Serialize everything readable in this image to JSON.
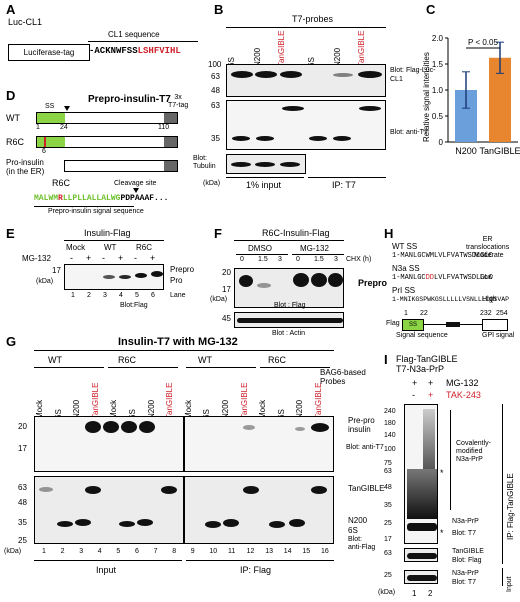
{
  "panelA": {
    "letter": "A",
    "title": "Luc-CL1",
    "cl1_header": "CL1 sequence",
    "tag_box": "Luciferase-tag",
    "sequence_black": "ACKNWFSS",
    "sequence_red": "LSHFVIHL",
    "sequence_prefix": "-"
  },
  "panelB": {
    "letter": "B",
    "probes_header": "T7-probes",
    "lanes": [
      "6S",
      "N200",
      "TanGIBLE",
      "6S",
      "N200",
      "TanGIBLE"
    ],
    "mw_top": [
      "100",
      "63",
      "48"
    ],
    "mw_mid": [
      "63",
      "35"
    ],
    "mw_unit": "(kDa)",
    "blot1": "Blot: Flag-Luc-CL1",
    "blot2": "Blot: anti-T7",
    "blot3": "Blot: Tubulin",
    "input_label": "1% input",
    "ip_label": "IP: T7"
  },
  "panelC": {
    "letter": "C",
    "ylabel": "Relative signal intensities",
    "pvalue": "P < 0.05",
    "chart_data": {
      "type": "bar",
      "categories": [
        "N200",
        "TanGIBLE"
      ],
      "values": [
        1.0,
        1.62
      ],
      "errors": [
        0.35,
        0.3
      ],
      "colors": [
        "#6b9fdc",
        "#e8852f"
      ],
      "yticks": [
        "0",
        "0.5",
        "1.0",
        "1.5",
        "2.0"
      ],
      "ylim": [
        0,
        2.0
      ]
    }
  },
  "panelD": {
    "letter": "D",
    "title": "Prepro-insulin-T7",
    "tag_label": "3x\nT7-tag",
    "rows": [
      "WT",
      "R6C",
      "Pro-insulin\n(in the ER)"
    ],
    "ss": "SS",
    "num1": "1",
    "num24": "24",
    "num110": "110",
    "num6": "6",
    "r6c": "R6C",
    "cleavage": "Cleavage site",
    "signal_seq_label": "Prepro-insulin signal sequence",
    "seq_green1": "MALWM",
    "seq_red": "R",
    "seq_green2": "LLPLLALLALWG",
    "seq_black": "PDPAAAF..."
  },
  "panelE": {
    "letter": "E",
    "title": "Insulin-Flag",
    "groups": [
      "Mock",
      "WT",
      "R6C"
    ],
    "mg132": "MG-132",
    "signs": [
      "-",
      "+",
      "-",
      "+",
      "-",
      "+"
    ],
    "mw": "17",
    "kda": "(kDa)",
    "prepro": "Prepro",
    "pro": "Pro",
    "lane_nums": [
      "1",
      "2",
      "3",
      "4",
      "5",
      "6"
    ],
    "lane_word": "Lane",
    "blot": "Blot:Flag"
  },
  "panelF": {
    "letter": "F",
    "title": "R6C-Insulin-Flag",
    "groups": [
      "DMSO",
      "MG-132"
    ],
    "chx": "CHX (h)",
    "times": [
      "0",
      "1.5",
      "3",
      "0",
      "1.5",
      "3"
    ],
    "mw1": [
      "20",
      "17"
    ],
    "mw2": "45",
    "kda": "(kDa)",
    "prepro": "Prepro",
    "blot1": "Blot : Flag",
    "blot2": "Blot : Actin"
  },
  "panelG": {
    "letter": "G",
    "title": "Insulin-T7 with MG-132",
    "groups": [
      "WT",
      "R6C",
      "WT",
      "R6C"
    ],
    "lanes": [
      "Mock",
      "6S",
      "N200",
      "TanGIBLE",
      "Mock",
      "6S",
      "N200",
      "TanGIBLE",
      "Mock",
      "6S",
      "N200",
      "TanGIBLE",
      "Mock",
      "6S",
      "N200",
      "TanGIBLE"
    ],
    "probes": "BAG6-based\nProbes",
    "mw1": [
      "20",
      "17"
    ],
    "mw2": [
      "63",
      "48",
      "35",
      "25"
    ],
    "kda": "(kDa)",
    "lane_nums": [
      "1",
      "2",
      "3",
      "4",
      "5",
      "6",
      "7",
      "8",
      "9",
      "10",
      "11",
      "12",
      "13",
      "14",
      "15",
      "16"
    ],
    "pre_pro": "Pre-pro\ninsulin",
    "blot1": "Blot: anti-T7",
    "tangible": "TanGIBLE",
    "n200": "N200",
    "s6": "6S",
    "blot2": "Blot:\nanti-Flag",
    "input": "Input",
    "ip": "IP: Flag"
  },
  "panelH": {
    "letter": "H",
    "wt_title": "WT SS",
    "wt_seq": "1-MANLGCWMLVLFVATWSDLGLC",
    "n3a_title": "N3a SS",
    "n3a_prefix": "1-MANLGC",
    "n3a_red": "DD",
    "n3a_suffix": "LVLFVATWSDLGLC",
    "prl_title": "PrI SS",
    "prl_seq": "1-MNIKGSPWKGSLLLLLVSNLLLCQSVAP",
    "er_title": "ER\ntranslocations",
    "er_vals": [
      "Moderate",
      "Low",
      "High"
    ],
    "n1": "1",
    "n22": "22",
    "n232": "232",
    "n254": "254",
    "flag": "Flag",
    "ss": "SS",
    "signal_seq": "Signal sequence",
    "gpi": "GPI signal"
  },
  "panelI": {
    "letter": "I",
    "title": "Flag-TanGIBLE\nT7-N3a-PrP",
    "mg132": "MG-132",
    "tak": "TAK-243",
    "signs1": [
      "+",
      "+"
    ],
    "signs2": [
      "-",
      "+"
    ],
    "mw": [
      "240",
      "180",
      "140",
      "100",
      "75",
      "63",
      "48",
      "35",
      "25",
      "17",
      "63",
      "25"
    ],
    "covalent": "Covalently-\nmodified\nN3a-PrP",
    "n3a1": "N3a-PrP",
    "blot_t7": "Blot: T7",
    "tangible": "TanGIBLE",
    "blot_flag": "Blot: Flag",
    "n3a2": "N3a-PrP",
    "blot_t7b": "Blot: T7",
    "ip": "IP: Flag-TanGIBLE",
    "input": "Input",
    "kda": "(kDa)",
    "lanes": [
      "1",
      "2"
    ],
    "star": "*"
  }
}
